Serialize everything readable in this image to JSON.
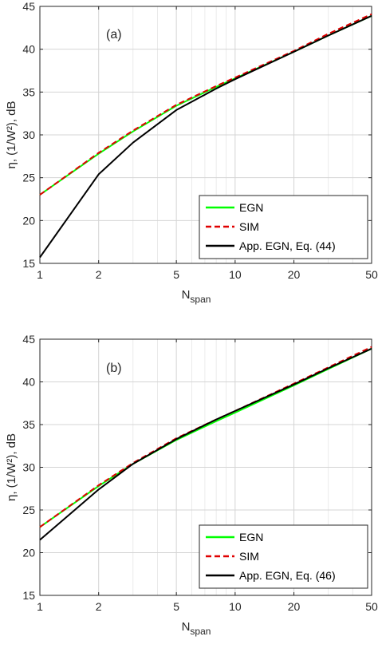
{
  "chart_data": [
    {
      "type": "line",
      "panel_label": "(a)",
      "xlabel": "N",
      "xlabel_sub": "span",
      "ylabel": "η, (1/W²), dB",
      "xscale": "log",
      "xlim": [
        1,
        50
      ],
      "ylim": [
        15,
        45
      ],
      "xticks": [
        1,
        2,
        5,
        10,
        20,
        50
      ],
      "xtick_labels": [
        "1",
        "2",
        "5",
        "10",
        "20",
        "50"
      ],
      "yticks": [
        15,
        20,
        25,
        30,
        35,
        40,
        45
      ],
      "ytick_labels": [
        "15",
        "20",
        "25",
        "30",
        "35",
        "40",
        "45"
      ],
      "grid": true,
      "legend_position": "lower-right",
      "series": [
        {
          "name": "EGN",
          "color": "#00ff00",
          "style": "solid",
          "x": [
            1,
            2,
            3,
            5,
            8,
            10,
            20,
            30,
            50
          ],
          "y": [
            23.0,
            27.8,
            30.4,
            33.4,
            35.6,
            36.6,
            39.7,
            41.6,
            43.9
          ]
        },
        {
          "name": "SIM",
          "color": "#e00000",
          "style": "dashed",
          "x": [
            1,
            2,
            3,
            5,
            8,
            10,
            20,
            30,
            50
          ],
          "y": [
            23.0,
            27.9,
            30.5,
            33.5,
            35.7,
            36.7,
            39.8,
            41.8,
            44.1
          ]
        },
        {
          "name": "App. EGN, Eq. (44)",
          "color": "#000000",
          "style": "solid",
          "x": [
            1,
            2,
            3,
            5,
            8,
            10,
            20,
            30,
            50
          ],
          "y": [
            15.7,
            25.4,
            29.1,
            32.9,
            35.4,
            36.5,
            39.7,
            41.6,
            43.9
          ]
        }
      ]
    },
    {
      "type": "line",
      "panel_label": "(b)",
      "xlabel": "N",
      "xlabel_sub": "span",
      "ylabel": "η, (1/W²), dB",
      "xscale": "log",
      "xlim": [
        1,
        50
      ],
      "ylim": [
        15,
        45
      ],
      "xticks": [
        1,
        2,
        5,
        10,
        20,
        50
      ],
      "xtick_labels": [
        "1",
        "2",
        "5",
        "10",
        "20",
        "50"
      ],
      "yticks": [
        15,
        20,
        25,
        30,
        35,
        40,
        45
      ],
      "ytick_labels": [
        "15",
        "20",
        "25",
        "30",
        "35",
        "40",
        "45"
      ],
      "grid": true,
      "legend_position": "lower-right",
      "series": [
        {
          "name": "EGN",
          "color": "#00ff00",
          "style": "solid",
          "x": [
            1,
            2,
            3,
            5,
            8,
            10,
            20,
            30,
            50
          ],
          "y": [
            23.0,
            27.8,
            30.4,
            33.2,
            35.4,
            36.4,
            39.6,
            41.5,
            43.9
          ]
        },
        {
          "name": "SIM",
          "color": "#e00000",
          "style": "dashed",
          "x": [
            1,
            2,
            3,
            5,
            8,
            10,
            20,
            30,
            50
          ],
          "y": [
            23.0,
            27.9,
            30.5,
            33.4,
            35.6,
            36.6,
            39.8,
            41.7,
            44.1
          ]
        },
        {
          "name": "App. EGN, Eq. (46)",
          "color": "#000000",
          "style": "solid",
          "x": [
            1,
            2,
            3,
            5,
            8,
            10,
            20,
            30,
            50
          ],
          "y": [
            21.5,
            27.4,
            30.4,
            33.3,
            35.6,
            36.6,
            39.7,
            41.6,
            43.9
          ]
        }
      ]
    }
  ]
}
